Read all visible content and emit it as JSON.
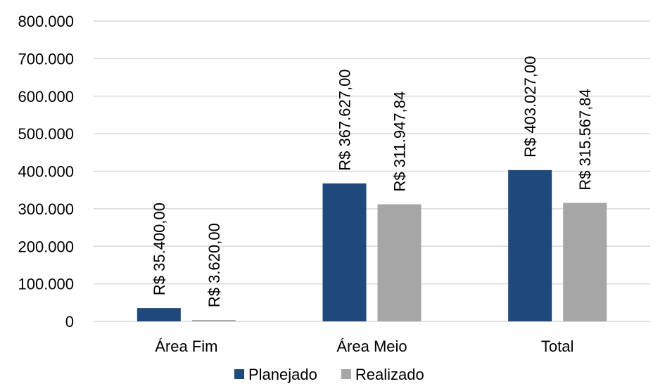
{
  "chart_data": {
    "type": "bar",
    "categories": [
      "Área Fim",
      "Área Meio",
      "Total"
    ],
    "series": [
      {
        "name": "Planejado",
        "color": "#1f497d",
        "values": [
          35400,
          367627,
          403027
        ],
        "labels": [
          "R$ 35.400,00",
          "R$ 367.627,00",
          "R$ 403.027,00"
        ]
      },
      {
        "name": "Realizado",
        "color": "#a6a6a6",
        "values": [
          3620,
          311947.84,
          315567.84
        ],
        "labels": [
          "R$ 3.620,00",
          "R$ 311.947,84",
          "R$ 315.567,84"
        ]
      }
    ],
    "ylim": [
      0,
      800000
    ],
    "yticks": [
      0,
      100000,
      200000,
      300000,
      400000,
      500000,
      600000,
      700000,
      800000
    ],
    "ytick_labels": [
      "0",
      "100.000",
      "200.000",
      "300.000",
      "400.000",
      "500.000",
      "600.000",
      "700.000",
      "800.000"
    ],
    "grid": true,
    "legend": "bottom-center",
    "title": "",
    "xlabel": "",
    "ylabel": ""
  }
}
